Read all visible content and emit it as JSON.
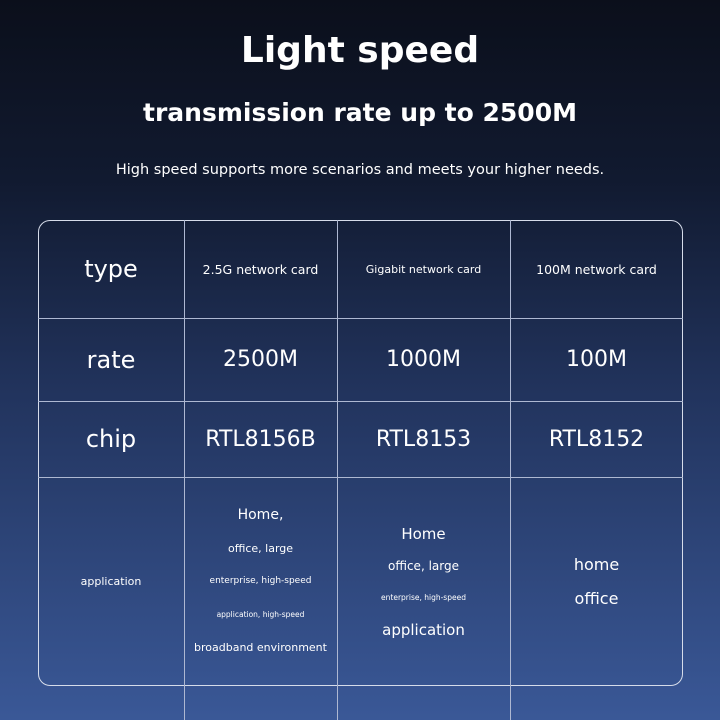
{
  "title": "Light speed",
  "subtitle": "transmission rate up to 2500M",
  "description": "High speed supports more scenarios and meets your higher needs.",
  "table": {
    "rows": [
      {
        "label": "type",
        "cells": [
          "2.5G network card",
          "Gigabit network card",
          "100M network card"
        ]
      },
      {
        "label": "rate",
        "cells": [
          "2500M",
          "1000M",
          "100M"
        ]
      },
      {
        "label": "chip",
        "cells": [
          "RTL8156B",
          "RTL8153",
          "RTL8152"
        ]
      }
    ],
    "application": {
      "label": "application",
      "col1": [
        "Home,",
        "office, large",
        "enterprise, high-speed",
        "application, high-speed",
        "broadband environment"
      ],
      "col2": [
        "Home",
        "office, large",
        "enterprise, high-speed",
        "application"
      ],
      "col3": [
        "home",
        "office"
      ]
    }
  }
}
